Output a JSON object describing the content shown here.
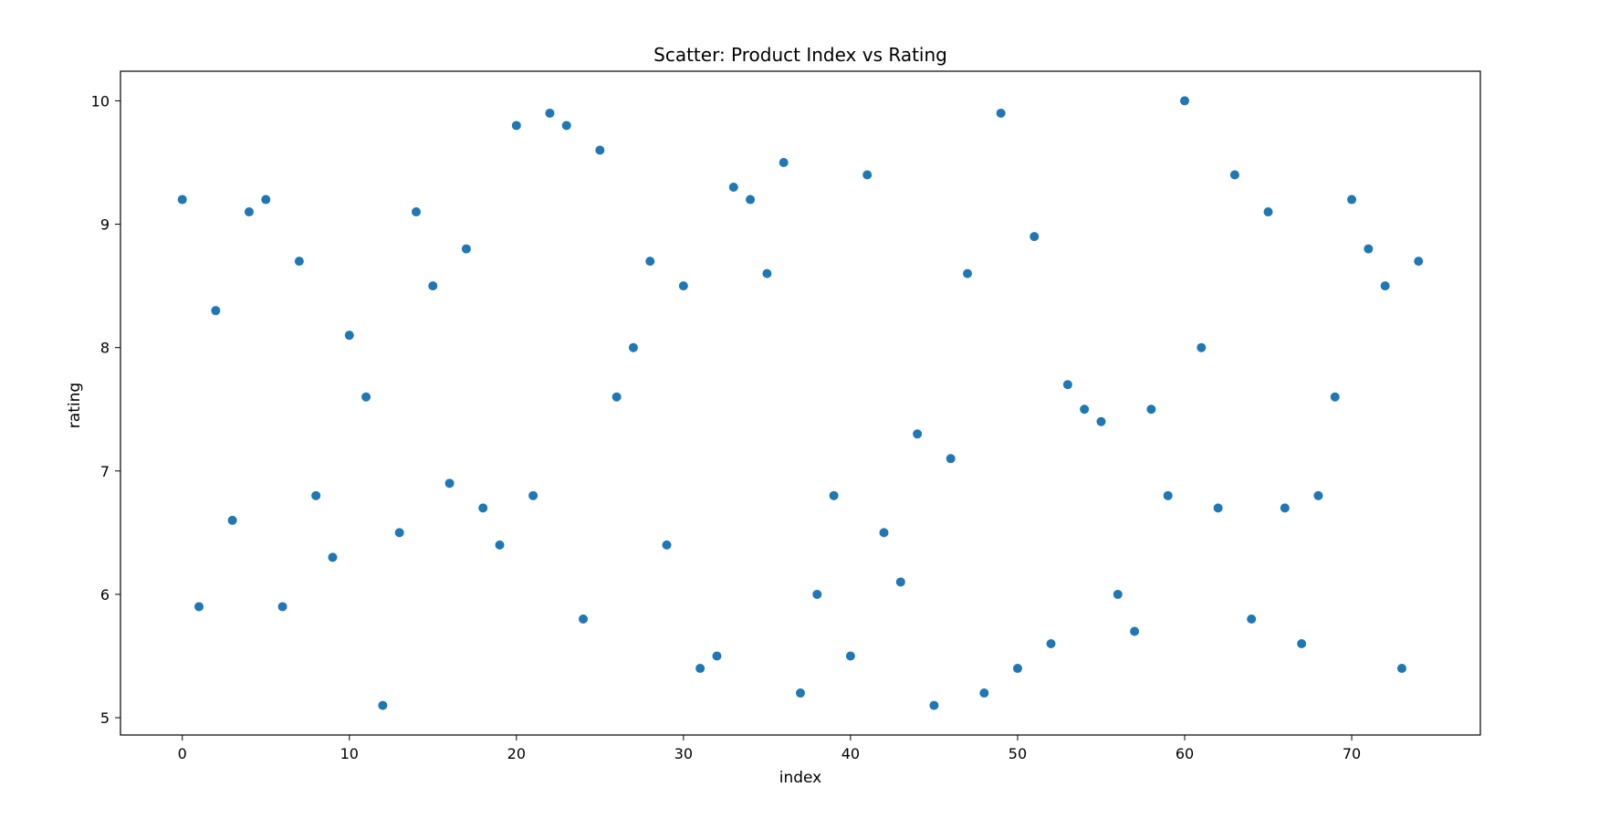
{
  "chart_data": {
    "type": "scatter",
    "title": "Scatter: Product Index vs Rating",
    "xlabel": "index",
    "ylabel": "rating",
    "xlim": [
      -3.7,
      77.7
    ],
    "ylim": [
      4.86,
      10.24
    ],
    "xticks": [
      0,
      10,
      20,
      30,
      40,
      50,
      60,
      70
    ],
    "yticks": [
      5,
      6,
      7,
      8,
      9,
      10
    ],
    "grid": false,
    "legend": "none",
    "marker_color": "#1f77b4",
    "series": [
      {
        "x": [
          0,
          1,
          2,
          3,
          4,
          5,
          6,
          7,
          8,
          9,
          10,
          11,
          12,
          13,
          14,
          15,
          16,
          17,
          18,
          19,
          20,
          21,
          22,
          23,
          24,
          25,
          26,
          27,
          28,
          29,
          30,
          31,
          32,
          33,
          34,
          35,
          36,
          37,
          38,
          39,
          40,
          41,
          42,
          43,
          44,
          45,
          46,
          47,
          48,
          49,
          50,
          51,
          52,
          53,
          54,
          55,
          56,
          57,
          58,
          59,
          60,
          61,
          62,
          63,
          64,
          65,
          66,
          67,
          68,
          69,
          70,
          71,
          72,
          73,
          74
        ],
        "y": [
          9.2,
          5.9,
          8.3,
          6.6,
          9.1,
          9.2,
          5.9,
          8.7,
          6.8,
          6.3,
          8.1,
          7.6,
          5.1,
          6.5,
          9.1,
          8.5,
          6.9,
          8.8,
          6.7,
          6.4,
          9.8,
          6.8,
          9.9,
          9.8,
          5.8,
          9.6,
          7.6,
          8.0,
          8.7,
          6.4,
          8.5,
          5.4,
          5.5,
          9.3,
          9.2,
          8.6,
          9.5,
          5.2,
          6.0,
          6.8,
          5.5,
          9.4,
          6.5,
          6.1,
          7.3,
          5.1,
          7.1,
          8.6,
          5.2,
          9.9,
          5.4,
          8.9,
          5.6,
          7.7,
          7.5,
          7.4,
          6.0,
          5.7,
          7.5,
          6.8,
          10.0,
          8.0,
          6.7,
          9.4,
          5.8,
          9.1,
          6.7,
          5.6,
          6.8,
          7.6,
          9.2,
          8.8,
          8.5,
          5.4,
          8.7
        ]
      }
    ]
  }
}
